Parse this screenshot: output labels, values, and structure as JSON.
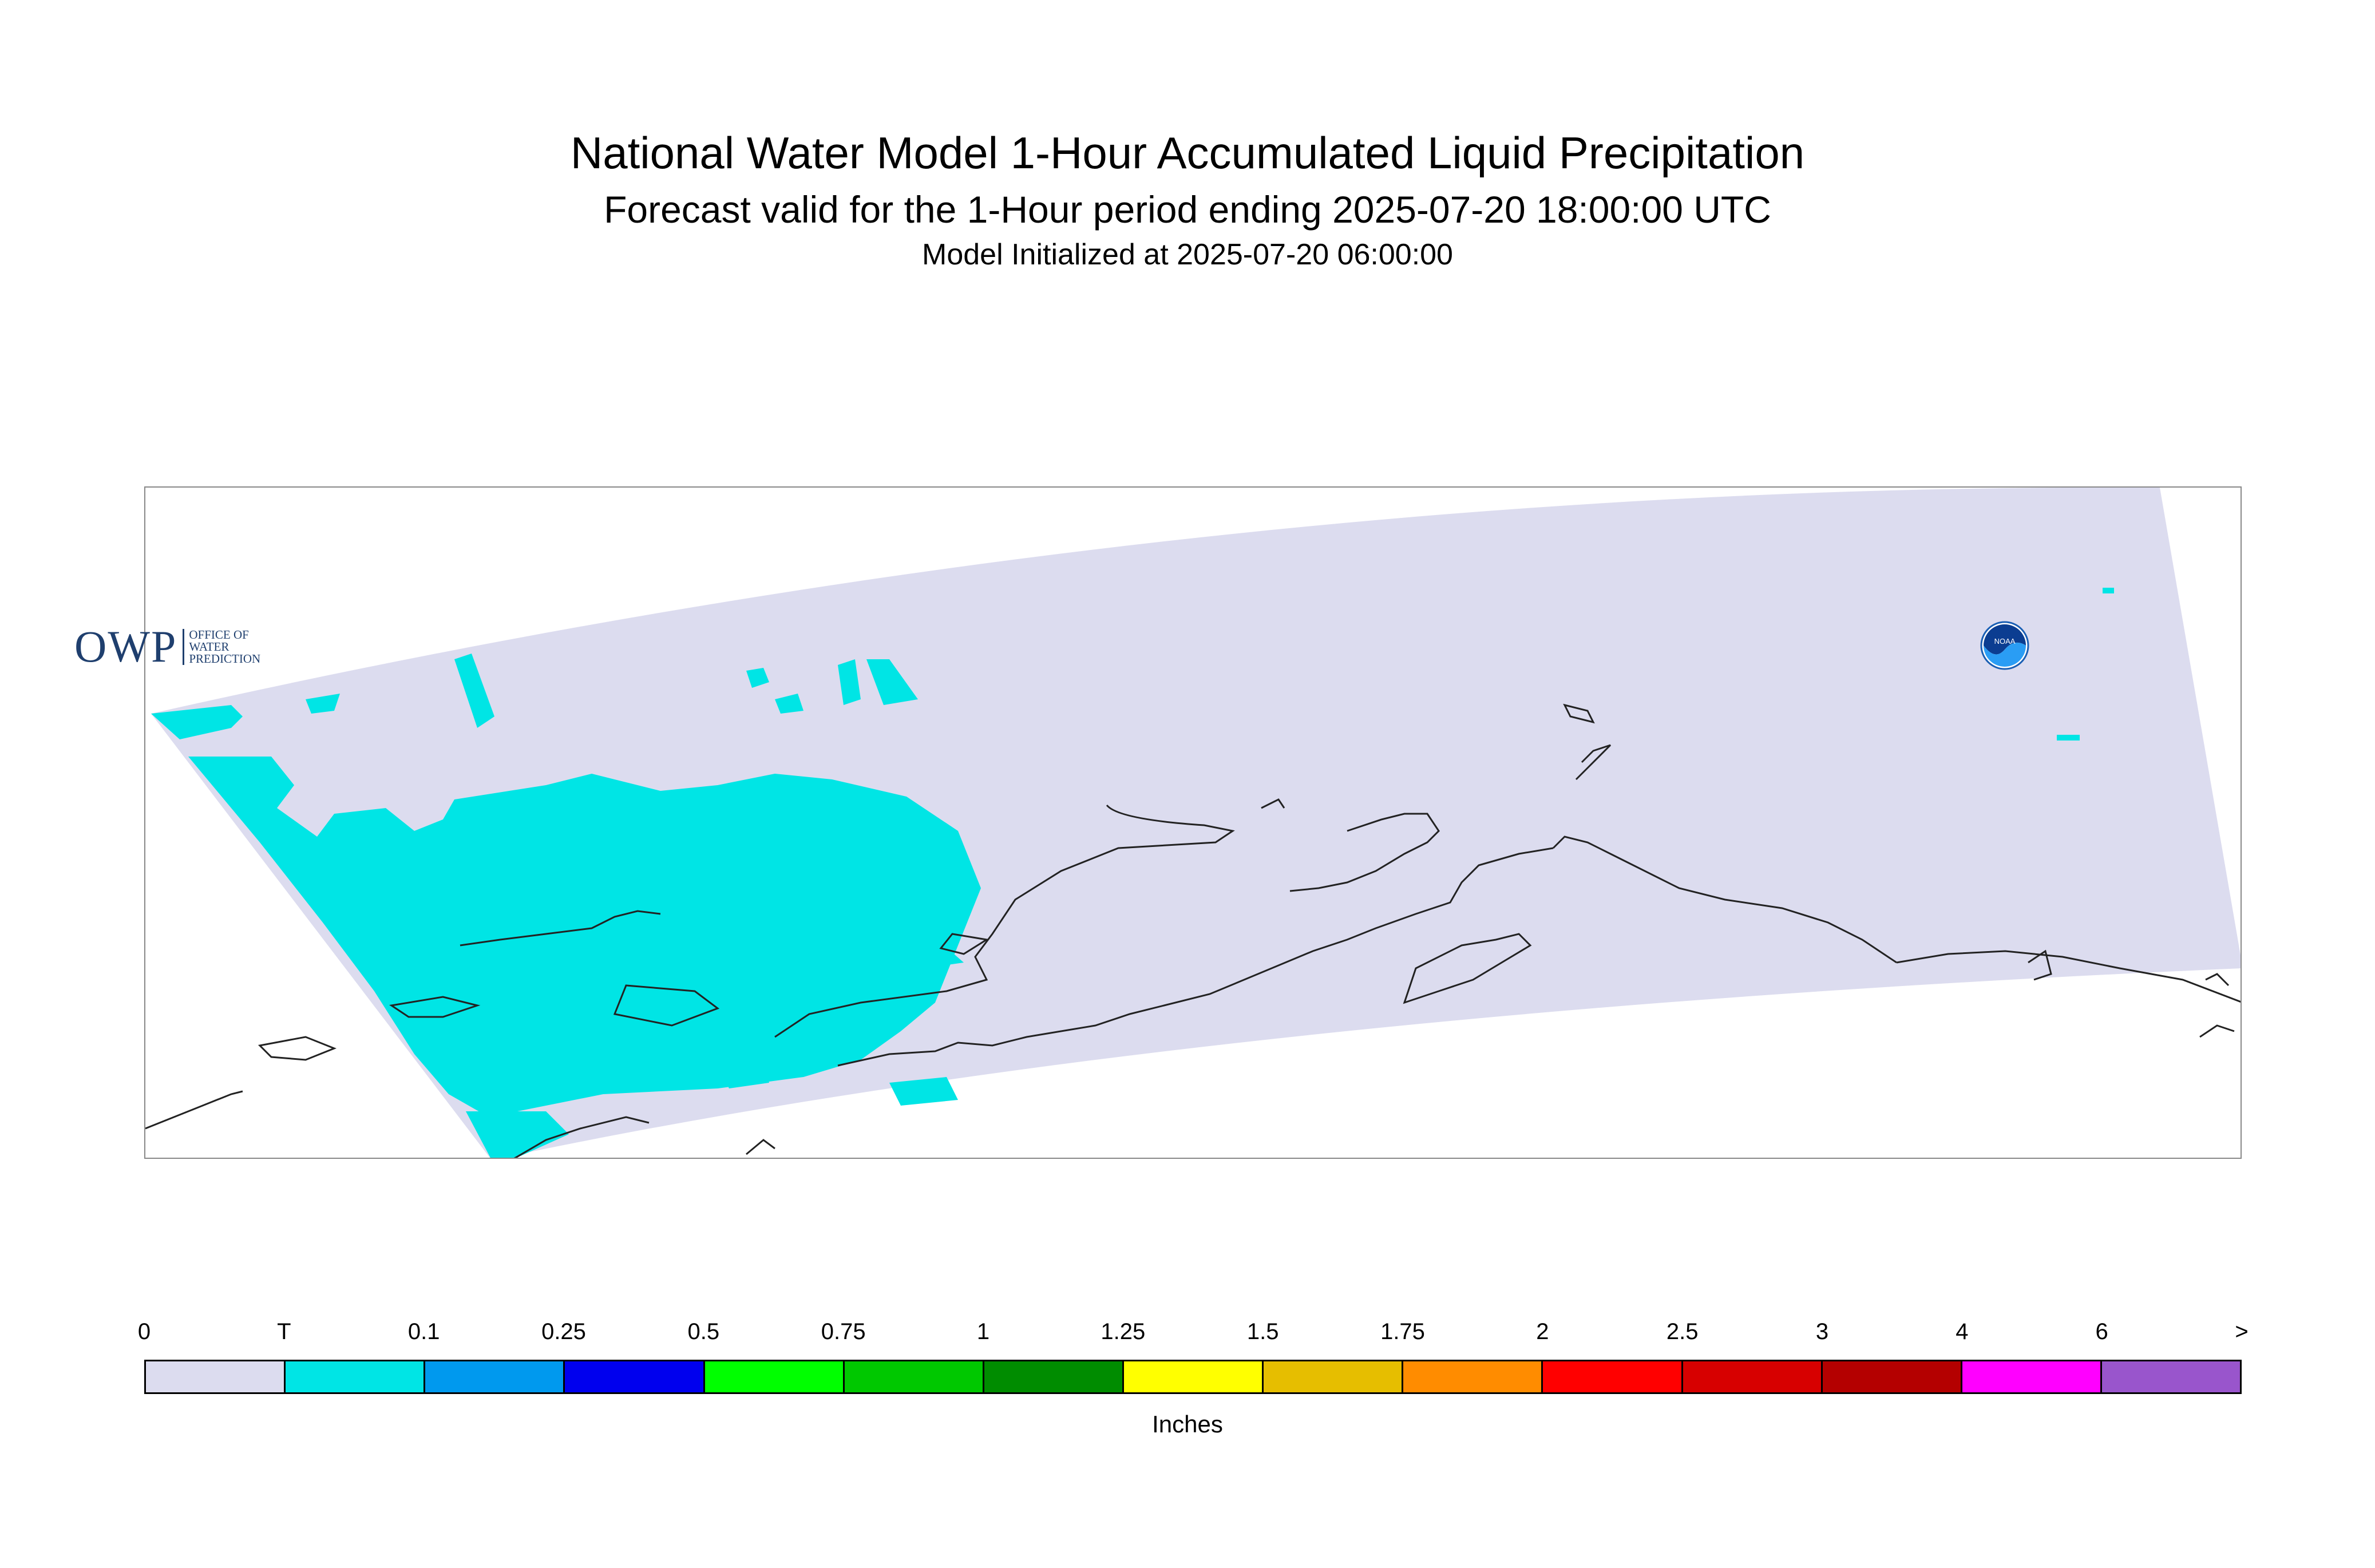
{
  "header": {
    "title": "National Water Model 1-Hour Accumulated Liquid Precipitation",
    "subtitle": "Forecast valid for the 1-Hour period ending 2025-07-20 18:00:00 UTC",
    "init": "Model Initialized at 2025-07-20 06:00:00"
  },
  "map": {
    "region": "Alaska domain",
    "domain_fill_color": "#dcdcef",
    "precip_trace_color": "#00e5e5",
    "coastline_color": "#222222"
  },
  "logos": {
    "owp": {
      "letters": "OWP",
      "line1": "OFFICE OF",
      "line2": "WATER",
      "line3": "PREDICTION"
    },
    "noaa": {
      "text": "NOAA"
    }
  },
  "legend": {
    "ticks": [
      "0",
      "T",
      "0.1",
      "0.25",
      "0.5",
      "0.75",
      "1",
      "1.25",
      "1.5",
      "1.75",
      "2",
      "2.5",
      "3",
      "4",
      "6",
      ">"
    ],
    "colors": [
      "#dcdcef",
      "#00e5e5",
      "#0099ee",
      "#0000ee",
      "#00ff00",
      "#00c800",
      "#008c00",
      "#ffff00",
      "#e6be00",
      "#ff8c00",
      "#ff0000",
      "#d70000",
      "#b40000",
      "#ff00ff",
      "#9955cc"
    ],
    "units": "Inches"
  }
}
